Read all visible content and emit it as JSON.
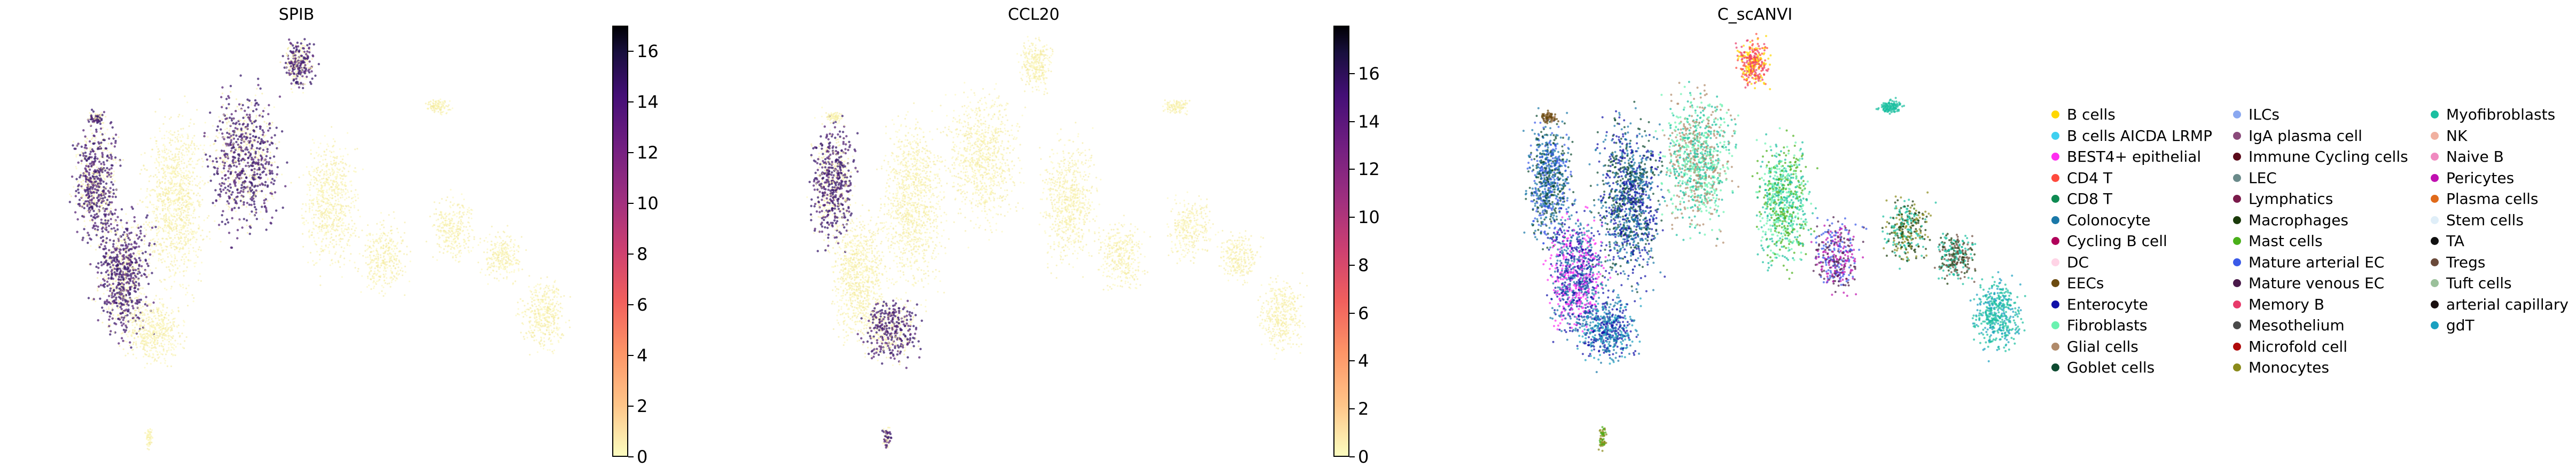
{
  "chart_data": [
    {
      "type": "scatter",
      "title": "SPIB",
      "colorbar": {
        "ticks": [
          0,
          2,
          4,
          6,
          8,
          10,
          12,
          14,
          16
        ],
        "range": [
          0,
          17
        ],
        "colormap": "magma_r"
      },
      "xlabel": "",
      "ylabel": "",
      "grid": false
    },
    {
      "type": "scatter",
      "title": "CCL20",
      "colorbar": {
        "ticks": [
          0,
          2,
          4,
          6,
          8,
          10,
          12,
          14,
          16
        ],
        "range": [
          0,
          18
        ],
        "colormap": "magma_r"
      },
      "xlabel": "",
      "ylabel": "",
      "grid": false
    },
    {
      "type": "scatter",
      "title": "C_scANVI",
      "legend_position": "right",
      "xlabel": "",
      "ylabel": "",
      "grid": false,
      "categories": [
        {
          "label": "B cells",
          "color": "#ffd700"
        },
        {
          "label": "B cells AICDA LRMP",
          "color": "#3fd0f0"
        },
        {
          "label": "BEST4+ epithelial",
          "color": "#ff2ef0"
        },
        {
          "label": "CD4 T",
          "color": "#ff4a3d"
        },
        {
          "label": "CD8 T",
          "color": "#0f8a52"
        },
        {
          "label": "Colonocyte",
          "color": "#1a78a8"
        },
        {
          "label": "Cycling B cell",
          "color": "#b0005a"
        },
        {
          "label": "DC",
          "color": "#ffd4e6"
        },
        {
          "label": "EECs",
          "color": "#6b4a10"
        },
        {
          "label": "Enterocyte",
          "color": "#1010a8"
        },
        {
          "label": "Fibroblasts",
          "color": "#6bf2b0"
        },
        {
          "label": "Glial cells",
          "color": "#b08a6a"
        },
        {
          "label": "Goblet cells",
          "color": "#0d4a30"
        },
        {
          "label": "ILCs",
          "color": "#8aa8f0"
        },
        {
          "label": "IgA plasma cell",
          "color": "#8a4a7a"
        },
        {
          "label": "Immune Cycling cells",
          "color": "#5a0a1a"
        },
        {
          "label": "LEC",
          "color": "#6a8a8a"
        },
        {
          "label": "Lymphatics",
          "color": "#7a1a4a"
        },
        {
          "label": "Macrophages",
          "color": "#1a3a0a"
        },
        {
          "label": "Mast cells",
          "color": "#4ab01a"
        },
        {
          "label": "Mature arterial EC",
          "color": "#3a5ae8"
        },
        {
          "label": "Mature venous EC",
          "color": "#4a1a4a"
        },
        {
          "label": "Memory B",
          "color": "#e83a6a"
        },
        {
          "label": "Mesothelium",
          "color": "#4a4a4a"
        },
        {
          "label": "Microfold cell",
          "color": "#b00a0a"
        },
        {
          "label": "Monocytes",
          "color": "#8a8a1a"
        },
        {
          "label": "Myofibroblasts",
          "color": "#1abfa0"
        },
        {
          "label": "NK",
          "color": "#f0b0a0"
        },
        {
          "label": "Naive B",
          "color": "#f08ac0"
        },
        {
          "label": "Pericytes",
          "color": "#c010b0"
        },
        {
          "label": "Plasma cells",
          "color": "#e06a1a"
        },
        {
          "label": "Stem cells",
          "color": "#dfeef8"
        },
        {
          "label": "TA",
          "color": "#101010"
        },
        {
          "label": "Tregs",
          "color": "#6a4a3a"
        },
        {
          "label": "Tuft cells",
          "color": "#9ac09a"
        },
        {
          "label": "arterial capillary",
          "color": "#1a1010"
        },
        {
          "label": "gdT",
          "color": "#1aa0c0"
        }
      ]
    }
  ]
}
